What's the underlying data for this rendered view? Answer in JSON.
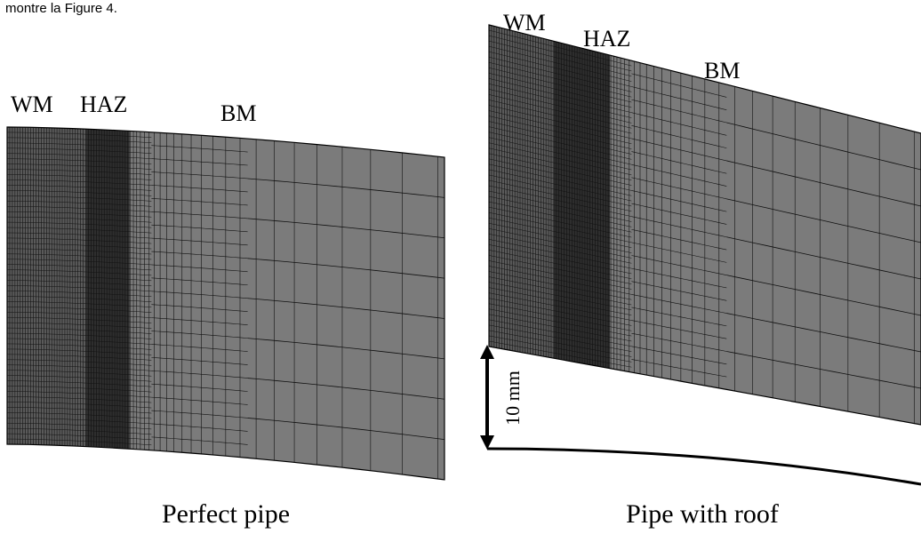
{
  "caption_fragment": "montre la Figure 4.",
  "panels": [
    {
      "labels": [
        "WM",
        "HAZ",
        "BM"
      ],
      "caption": "Perfect pipe"
    },
    {
      "labels": [
        "WM",
        "HAZ",
        "BM"
      ],
      "scale_bar": "10 mm",
      "caption": "Pipe with roof"
    }
  ]
}
